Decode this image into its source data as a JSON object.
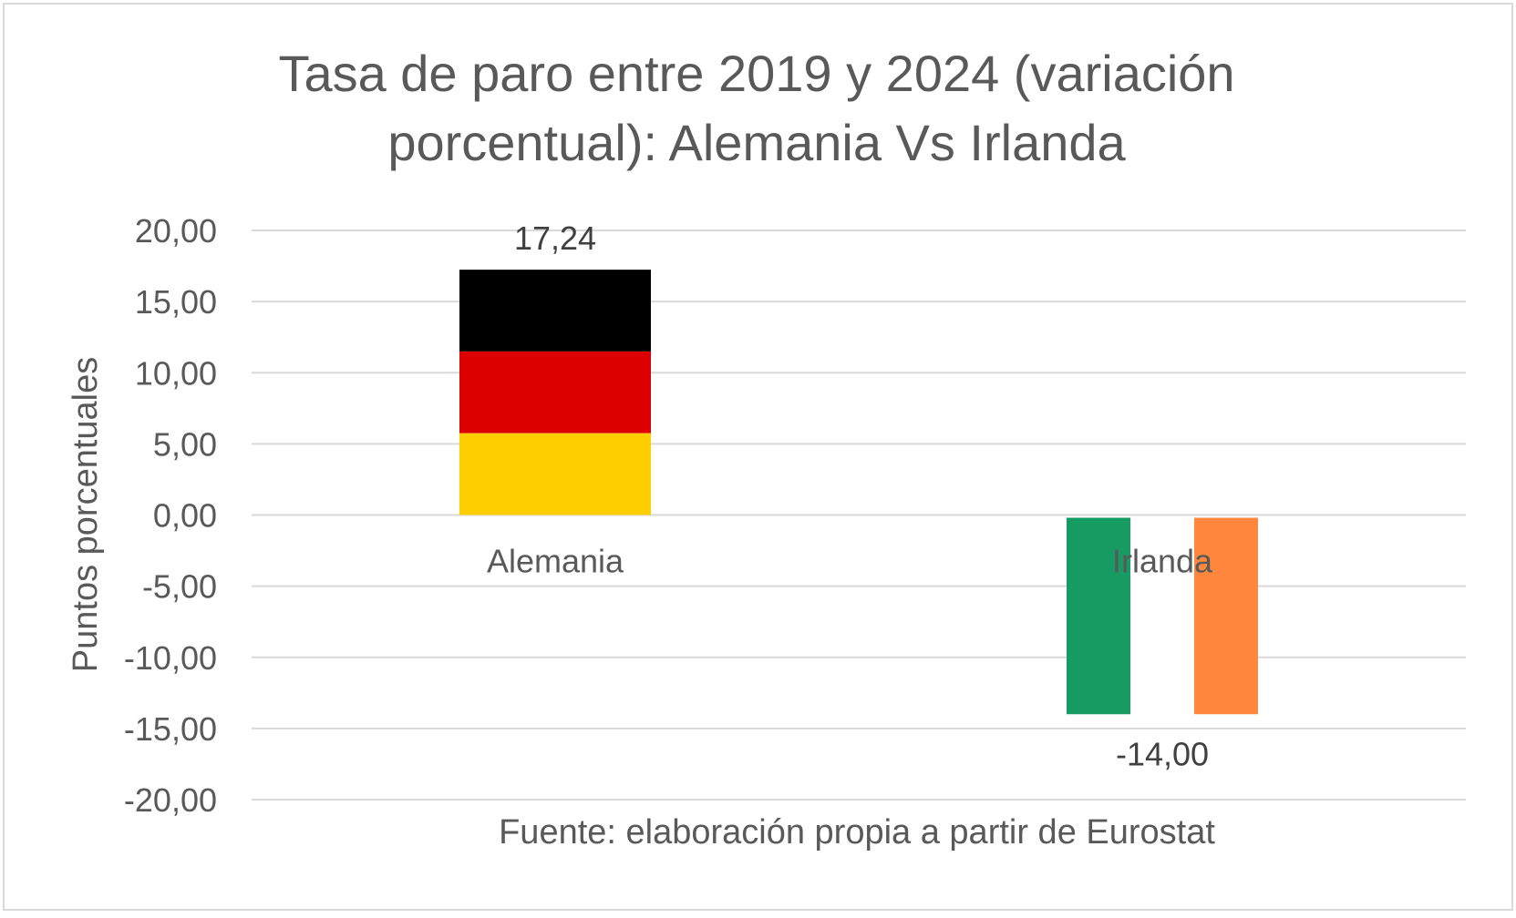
{
  "chart_data": {
    "type": "bar",
    "title_lines": [
      "Tasa de paro entre 2019 y 2024 (variación",
      "porcentual): Alemania Vs Irlanda"
    ],
    "ylabel": "Puntos porcentuales",
    "xlabel": "",
    "ylim": [
      -20,
      20
    ],
    "yticks": [
      20,
      15,
      10,
      5,
      0,
      -5,
      -10,
      -15,
      -20
    ],
    "ytick_labels": [
      "20,00",
      "15,00",
      "10,00",
      "5,00",
      "0,00",
      "-5,00",
      "-10,00",
      "-15,00",
      "-20,00"
    ],
    "grid": true,
    "categories": [
      "Alemania",
      "Irlanda"
    ],
    "values": [
      17.24,
      -14.0
    ],
    "value_labels": [
      "17,24",
      "-14,00"
    ],
    "bar_fills": [
      {
        "style": "horizontal-stripes",
        "colors": [
          "#000000",
          "#DD0000",
          "#FFCE00"
        ]
      },
      {
        "style": "vertical-stripes",
        "colors": [
          "#169B62",
          "#FFFFFF",
          "#FF883E"
        ]
      }
    ],
    "source_note": "Fuente: elaboración propia a partir de Eurostat"
  },
  "colors": {
    "text": "#595959",
    "grid": "#d9d9d9",
    "frame": "#d9d9d9"
  }
}
